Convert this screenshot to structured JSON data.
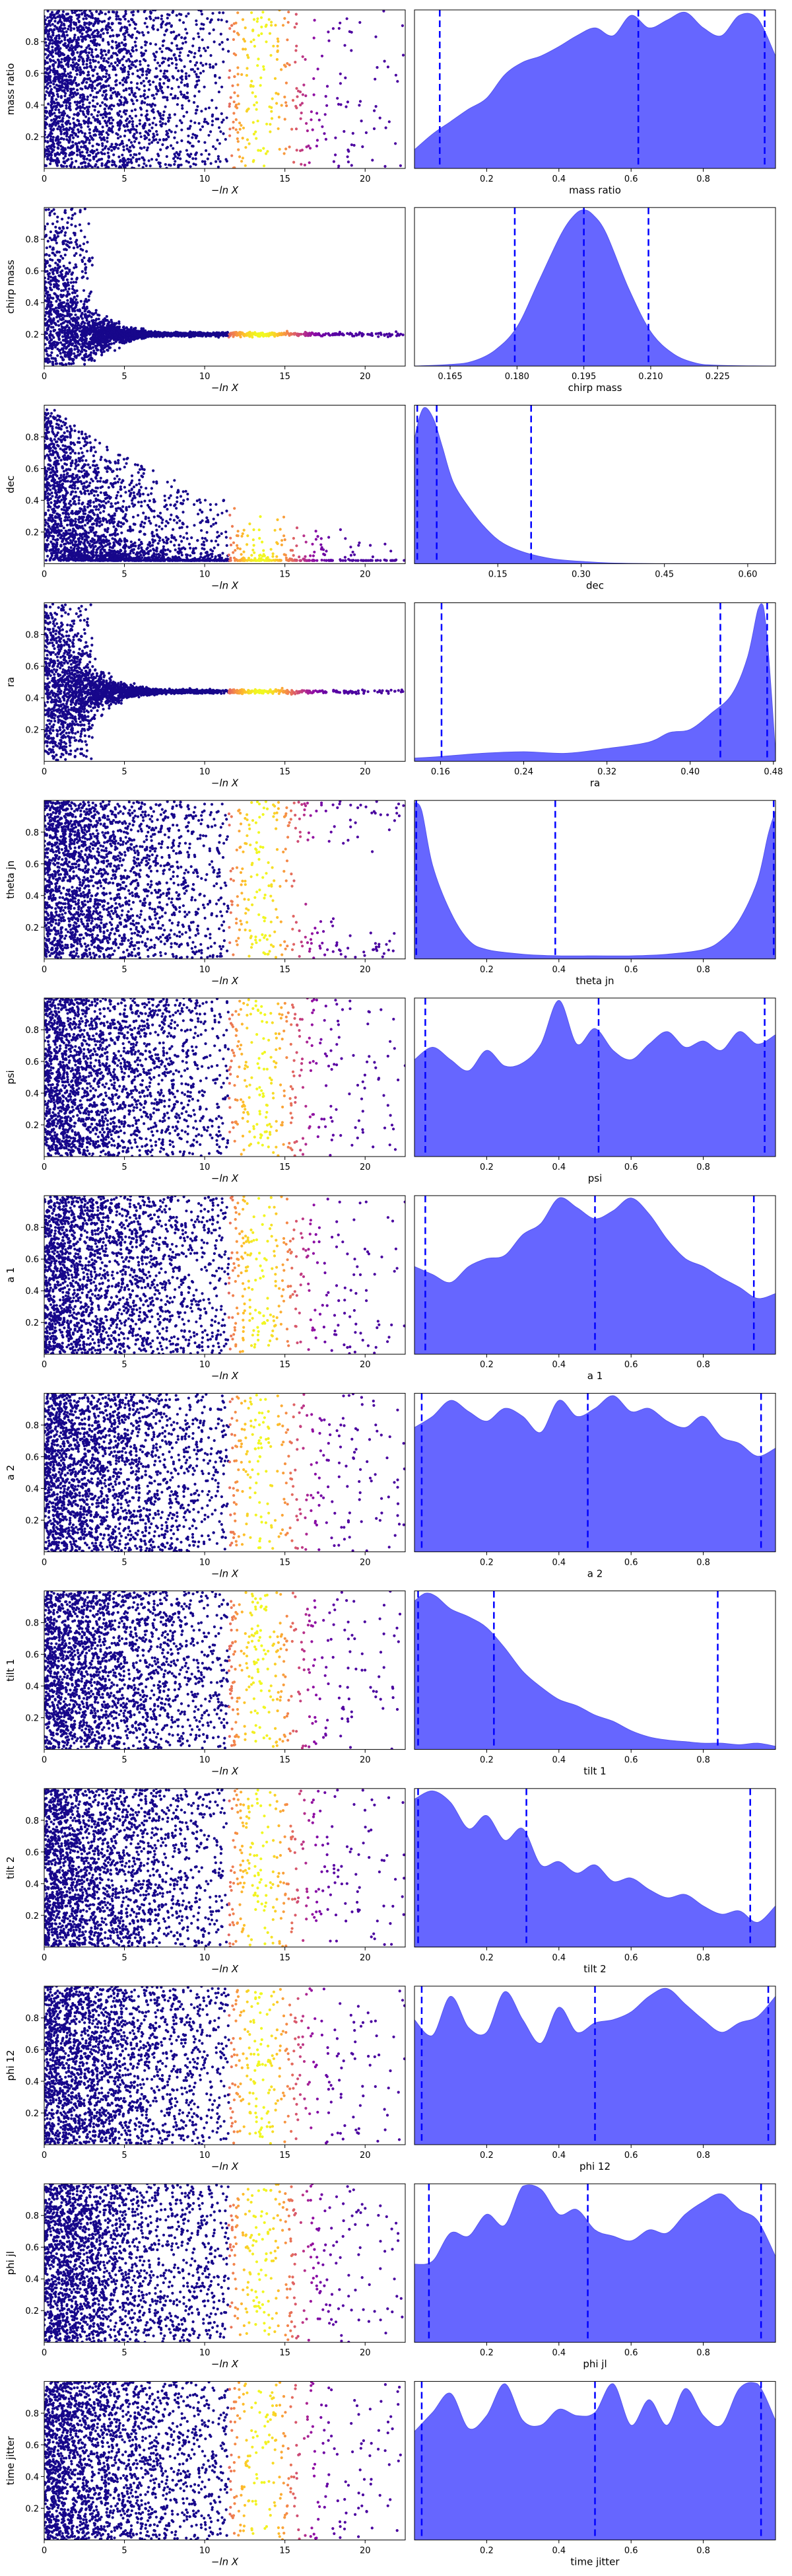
{
  "chart_data": {
    "type": "scatter",
    "description_note": "",
    "colormap": "plasma",
    "dot_color_low": "#0d0887",
    "dot_color_high": "#f0f921",
    "kde_fill_color": "#6666ff",
    "quantile_line_color": "#0000ff",
    "scatter_xlabel": "−ln X",
    "scatter_xlim": [
      0,
      22.5
    ],
    "scatter_xticks": [
      0,
      5,
      10,
      15,
      20
    ],
    "scatter_ylim": [
      0,
      1
    ],
    "panels": [
      {
        "name": "mass ratio",
        "ylabel": "mass ratio",
        "xlabel": "mass ratio",
        "scatter_yticks": [
          0.2,
          0.4,
          0.6,
          0.8
        ],
        "scatter_mode": "uniform",
        "kde_xlim": [
          0.0,
          1.0
        ],
        "kde_xticks": [
          0.2,
          0.4,
          0.6,
          0.8
        ],
        "kde_tick_labels": [
          "0.2",
          "0.4",
          "0.6",
          "0.8"
        ],
        "kde_x": [
          0.0,
          0.05,
          0.1,
          0.15,
          0.2,
          0.25,
          0.3,
          0.35,
          0.4,
          0.45,
          0.5,
          0.55,
          0.6,
          0.65,
          0.7,
          0.75,
          0.8,
          0.85,
          0.9,
          0.95,
          1.0
        ],
        "kde_y": [
          0.12,
          0.22,
          0.3,
          0.38,
          0.45,
          0.6,
          0.68,
          0.72,
          0.78,
          0.85,
          0.9,
          0.85,
          0.98,
          0.9,
          0.95,
          1.0,
          0.9,
          0.85,
          0.98,
          0.96,
          0.72
        ],
        "quantiles": [
          0.07,
          0.62,
          0.97
        ]
      },
      {
        "name": "chirp mass",
        "ylabel": "chirp mass",
        "xlabel": "chirp mass",
        "scatter_yticks": [
          0.2,
          0.4,
          0.6,
          0.8
        ],
        "scatter_mode": "converge",
        "converge_value": 0.2,
        "kde_xlim": [
          0.157,
          0.238
        ],
        "kde_xticks": [
          0.165,
          0.18,
          0.195,
          0.21,
          0.225
        ],
        "kde_tick_labels": [
          "0.165",
          "0.180",
          "0.195",
          "0.210",
          "0.225"
        ],
        "kde_x": [
          0.157,
          0.165,
          0.17,
          0.175,
          0.18,
          0.185,
          0.19,
          0.193,
          0.195,
          0.197,
          0.2,
          0.205,
          0.21,
          0.215,
          0.22,
          0.225,
          0.238
        ],
        "kde_y": [
          0.0,
          0.01,
          0.03,
          0.1,
          0.25,
          0.55,
          0.85,
          0.97,
          1.0,
          0.97,
          0.85,
          0.5,
          0.22,
          0.08,
          0.02,
          0.005,
          0.0
        ],
        "quantiles": [
          0.1795,
          0.195,
          0.2095
        ]
      },
      {
        "name": "dec",
        "ylabel": "dec",
        "xlabel": "dec",
        "scatter_yticks": [
          0.2,
          0.4,
          0.6,
          0.8
        ],
        "scatter_mode": "decay",
        "kde_xlim": [
          0.0,
          0.65
        ],
        "kde_xticks": [
          0.15,
          0.3,
          0.45,
          0.6
        ],
        "kde_tick_labels": [
          "0.15",
          "0.30",
          "0.45",
          "0.60"
        ],
        "kde_x": [
          0.0,
          0.01,
          0.02,
          0.035,
          0.05,
          0.07,
          0.1,
          0.13,
          0.16,
          0.2,
          0.25,
          0.3,
          0.35,
          0.45,
          0.65
        ],
        "kde_y": [
          0.8,
          0.95,
          1.0,
          0.92,
          0.75,
          0.52,
          0.35,
          0.22,
          0.13,
          0.07,
          0.03,
          0.015,
          0.005,
          0.0,
          0.0
        ],
        "quantiles": [
          0.005,
          0.04,
          0.21
        ]
      },
      {
        "name": "ra",
        "ylabel": "ra",
        "xlabel": "ra",
        "scatter_yticks": [
          0.2,
          0.4,
          0.6,
          0.8
        ],
        "scatter_mode": "converge",
        "converge_value": 0.44,
        "kde_xlim": [
          0.135,
          0.482
        ],
        "kde_xticks": [
          0.16,
          0.24,
          0.32,
          0.4,
          0.48
        ],
        "kde_tick_labels": [
          "0.16",
          "0.24",
          "0.32",
          "0.40",
          "0.48"
        ],
        "kde_x": [
          0.135,
          0.16,
          0.2,
          0.24,
          0.28,
          0.32,
          0.36,
          0.38,
          0.4,
          0.42,
          0.44,
          0.455,
          0.465,
          0.47,
          0.475,
          0.482
        ],
        "kde_y": [
          0.02,
          0.03,
          0.05,
          0.06,
          0.05,
          0.08,
          0.12,
          0.18,
          0.2,
          0.3,
          0.42,
          0.65,
          0.95,
          0.98,
          0.7,
          0.05
        ],
        "quantiles": [
          0.161,
          0.429,
          0.474
        ]
      },
      {
        "name": "theta jn",
        "ylabel": "theta jn",
        "xlabel": "theta jn",
        "scatter_yticks": [
          0.2,
          0.4,
          0.6,
          0.8
        ],
        "scatter_mode": "edges",
        "kde_xlim": [
          0.0,
          1.0
        ],
        "kde_xticks": [
          0.2,
          0.4,
          0.6,
          0.8
        ],
        "kde_tick_labels": [
          "0.2",
          "0.4",
          "0.6",
          "0.8"
        ],
        "kde_x": [
          0.0,
          0.02,
          0.05,
          0.1,
          0.15,
          0.2,
          0.3,
          0.4,
          0.5,
          0.6,
          0.7,
          0.8,
          0.85,
          0.9,
          0.95,
          0.98,
          1.0
        ],
        "kde_y": [
          1.0,
          0.95,
          0.6,
          0.3,
          0.12,
          0.06,
          0.03,
          0.02,
          0.02,
          0.02,
          0.03,
          0.06,
          0.12,
          0.25,
          0.5,
          0.8,
          0.95
        ],
        "quantiles": [
          0.005,
          0.39,
          0.995
        ]
      },
      {
        "name": "psi",
        "ylabel": "psi",
        "xlabel": "psi",
        "scatter_yticks": [
          0.2,
          0.4,
          0.6,
          0.8
        ],
        "scatter_mode": "uniform",
        "kde_xlim": [
          0.0,
          1.0
        ],
        "kde_xticks": [
          0.2,
          0.4,
          0.6,
          0.8
        ],
        "kde_tick_labels": [
          "0.2",
          "0.4",
          "0.6",
          "0.8"
        ],
        "kde_x": [
          0.0,
          0.05,
          0.1,
          0.15,
          0.2,
          0.25,
          0.3,
          0.35,
          0.4,
          0.45,
          0.5,
          0.55,
          0.6,
          0.65,
          0.7,
          0.75,
          0.8,
          0.85,
          0.9,
          0.95,
          1.0
        ],
        "kde_y": [
          0.62,
          0.7,
          0.62,
          0.55,
          0.68,
          0.58,
          0.6,
          0.72,
          1.0,
          0.72,
          0.82,
          0.68,
          0.62,
          0.72,
          0.8,
          0.7,
          0.74,
          0.68,
          0.8,
          0.72,
          0.78
        ],
        "quantiles": [
          0.03,
          0.51,
          0.97
        ]
      },
      {
        "name": "a 1",
        "ylabel": "a 1",
        "xlabel": "a 1",
        "scatter_yticks": [
          0.2,
          0.4,
          0.6,
          0.8
        ],
        "scatter_mode": "uniform",
        "kde_xlim": [
          0.0,
          1.0
        ],
        "kde_xticks": [
          0.2,
          0.4,
          0.6,
          0.8
        ],
        "kde_tick_labels": [
          "0.2",
          "0.4",
          "0.6",
          "0.8"
        ],
        "kde_x": [
          0.0,
          0.05,
          0.1,
          0.15,
          0.2,
          0.25,
          0.3,
          0.35,
          0.4,
          0.45,
          0.5,
          0.55,
          0.6,
          0.65,
          0.7,
          0.75,
          0.8,
          0.85,
          0.9,
          0.95,
          1.0
        ],
        "kde_y": [
          0.55,
          0.5,
          0.45,
          0.55,
          0.6,
          0.62,
          0.75,
          0.82,
          0.98,
          0.92,
          0.85,
          0.9,
          0.98,
          0.88,
          0.72,
          0.6,
          0.55,
          0.48,
          0.42,
          0.35,
          0.38
        ],
        "quantiles": [
          0.03,
          0.5,
          0.94
        ]
      },
      {
        "name": "a 2",
        "ylabel": "a 2",
        "xlabel": "a 2",
        "scatter_yticks": [
          0.2,
          0.4,
          0.6,
          0.8
        ],
        "scatter_mode": "uniform",
        "kde_xlim": [
          0.0,
          1.0
        ],
        "kde_xticks": [
          0.2,
          0.4,
          0.6,
          0.8
        ],
        "kde_tick_labels": [
          "0.2",
          "0.4",
          "0.6",
          "0.8"
        ],
        "kde_x": [
          0.0,
          0.05,
          0.1,
          0.15,
          0.2,
          0.25,
          0.3,
          0.35,
          0.4,
          0.45,
          0.5,
          0.55,
          0.6,
          0.65,
          0.7,
          0.75,
          0.8,
          0.85,
          0.9,
          0.95,
          1.0
        ],
        "kde_y": [
          0.78,
          0.85,
          0.95,
          0.88,
          0.82,
          0.9,
          0.85,
          0.75,
          0.95,
          0.85,
          0.9,
          0.98,
          0.88,
          0.9,
          0.82,
          0.78,
          0.85,
          0.72,
          0.68,
          0.6,
          0.65
        ],
        "quantiles": [
          0.02,
          0.48,
          0.96
        ]
      },
      {
        "name": "tilt 1",
        "ylabel": "tilt 1",
        "xlabel": "tilt 1",
        "scatter_yticks": [
          0.2,
          0.4,
          0.6,
          0.8
        ],
        "scatter_mode": "uniform",
        "kde_xlim": [
          0.0,
          1.0
        ],
        "kde_xticks": [
          0.2,
          0.4,
          0.6,
          0.8
        ],
        "kde_tick_labels": [
          "0.2",
          "0.4",
          "0.6",
          "0.8"
        ],
        "kde_x": [
          0.0,
          0.03,
          0.06,
          0.1,
          0.15,
          0.2,
          0.25,
          0.3,
          0.35,
          0.4,
          0.45,
          0.5,
          0.55,
          0.6,
          0.65,
          0.7,
          0.75,
          0.8,
          0.85,
          0.9,
          0.95,
          1.0
        ],
        "kde_y": [
          0.95,
          1.0,
          0.98,
          0.9,
          0.85,
          0.78,
          0.65,
          0.5,
          0.4,
          0.32,
          0.28,
          0.22,
          0.18,
          0.12,
          0.08,
          0.06,
          0.05,
          0.04,
          0.04,
          0.03,
          0.04,
          0.02
        ],
        "quantiles": [
          0.01,
          0.22,
          0.84
        ]
      },
      {
        "name": "tilt 2",
        "ylabel": "tilt 2",
        "xlabel": "tilt 2",
        "scatter_yticks": [
          0.2,
          0.4,
          0.6,
          0.8
        ],
        "scatter_mode": "uniform",
        "kde_xlim": [
          0.0,
          1.0
        ],
        "kde_xticks": [
          0.2,
          0.4,
          0.6,
          0.8
        ],
        "kde_tick_labels": [
          "0.2",
          "0.4",
          "0.6",
          "0.8"
        ],
        "kde_x": [
          0.0,
          0.05,
          0.1,
          0.15,
          0.2,
          0.25,
          0.3,
          0.35,
          0.4,
          0.45,
          0.5,
          0.55,
          0.6,
          0.65,
          0.7,
          0.75,
          0.8,
          0.85,
          0.9,
          0.95,
          1.0
        ],
        "kde_y": [
          0.9,
          0.95,
          0.88,
          0.72,
          0.8,
          0.65,
          0.72,
          0.5,
          0.52,
          0.45,
          0.5,
          0.4,
          0.42,
          0.35,
          0.3,
          0.32,
          0.25,
          0.2,
          0.22,
          0.15,
          0.25
        ],
        "quantiles": [
          0.01,
          0.31,
          0.93
        ]
      },
      {
        "name": "phi 12",
        "ylabel": "phi 12",
        "xlabel": "phi 12",
        "scatter_yticks": [
          0.2,
          0.4,
          0.6,
          0.8
        ],
        "scatter_mode": "uniform",
        "kde_xlim": [
          0.0,
          1.0
        ],
        "kde_xticks": [
          0.2,
          0.4,
          0.6,
          0.8
        ],
        "kde_tick_labels": [
          "0.2",
          "0.4",
          "0.6",
          "0.8"
        ],
        "kde_x": [
          0.0,
          0.05,
          0.1,
          0.15,
          0.2,
          0.25,
          0.3,
          0.35,
          0.4,
          0.45,
          0.5,
          0.55,
          0.6,
          0.65,
          0.7,
          0.75,
          0.8,
          0.85,
          0.9,
          0.95,
          1.0
        ],
        "kde_y": [
          0.8,
          0.7,
          0.95,
          0.75,
          0.72,
          0.98,
          0.8,
          0.65,
          0.88,
          0.72,
          0.78,
          0.8,
          0.85,
          0.95,
          1.0,
          0.9,
          0.8,
          0.72,
          0.78,
          0.82,
          0.95
        ],
        "quantiles": [
          0.02,
          0.5,
          0.98
        ]
      },
      {
        "name": "phi jl",
        "ylabel": "phi jl",
        "xlabel": "phi jl",
        "scatter_yticks": [
          0.2,
          0.4,
          0.6,
          0.8
        ],
        "scatter_mode": "uniform",
        "kde_xlim": [
          0.0,
          1.0
        ],
        "kde_xticks": [
          0.2,
          0.4,
          0.6,
          0.8
        ],
        "kde_tick_labels": [
          "0.2",
          "0.4",
          "0.6",
          "0.8"
        ],
        "kde_x": [
          0.0,
          0.05,
          0.1,
          0.15,
          0.2,
          0.25,
          0.3,
          0.35,
          0.4,
          0.45,
          0.5,
          0.55,
          0.6,
          0.65,
          0.7,
          0.75,
          0.8,
          0.85,
          0.9,
          0.95,
          1.0
        ],
        "kde_y": [
          0.5,
          0.52,
          0.7,
          0.68,
          0.82,
          0.75,
          1.0,
          0.98,
          0.82,
          0.85,
          0.72,
          0.68,
          0.65,
          0.72,
          0.7,
          0.82,
          0.9,
          0.95,
          0.85,
          0.78,
          0.55
        ],
        "quantiles": [
          0.04,
          0.48,
          0.96
        ]
      },
      {
        "name": "time jitter",
        "ylabel": "time jitter",
        "xlabel": "time jitter",
        "scatter_yticks": [
          0.2,
          0.4,
          0.6,
          0.8
        ],
        "scatter_mode": "uniform",
        "kde_xlim": [
          0.0,
          1.0
        ],
        "kde_xticks": [
          0.2,
          0.4,
          0.6,
          0.8
        ],
        "kde_tick_labels": [
          "0.2",
          "0.4",
          "0.6",
          "0.8"
        ],
        "kde_x": [
          0.0,
          0.05,
          0.1,
          0.15,
          0.2,
          0.25,
          0.3,
          0.35,
          0.4,
          0.45,
          0.5,
          0.55,
          0.6,
          0.65,
          0.7,
          0.75,
          0.8,
          0.85,
          0.9,
          0.95,
          1.0
        ],
        "kde_y": [
          0.68,
          0.8,
          0.92,
          0.7,
          0.78,
          0.98,
          0.75,
          0.72,
          0.82,
          0.78,
          0.8,
          0.98,
          0.72,
          0.88,
          0.72,
          0.95,
          0.78,
          0.72,
          0.95,
          0.98,
          0.75
        ],
        "quantiles": [
          0.02,
          0.5,
          0.96
        ]
      }
    ]
  }
}
